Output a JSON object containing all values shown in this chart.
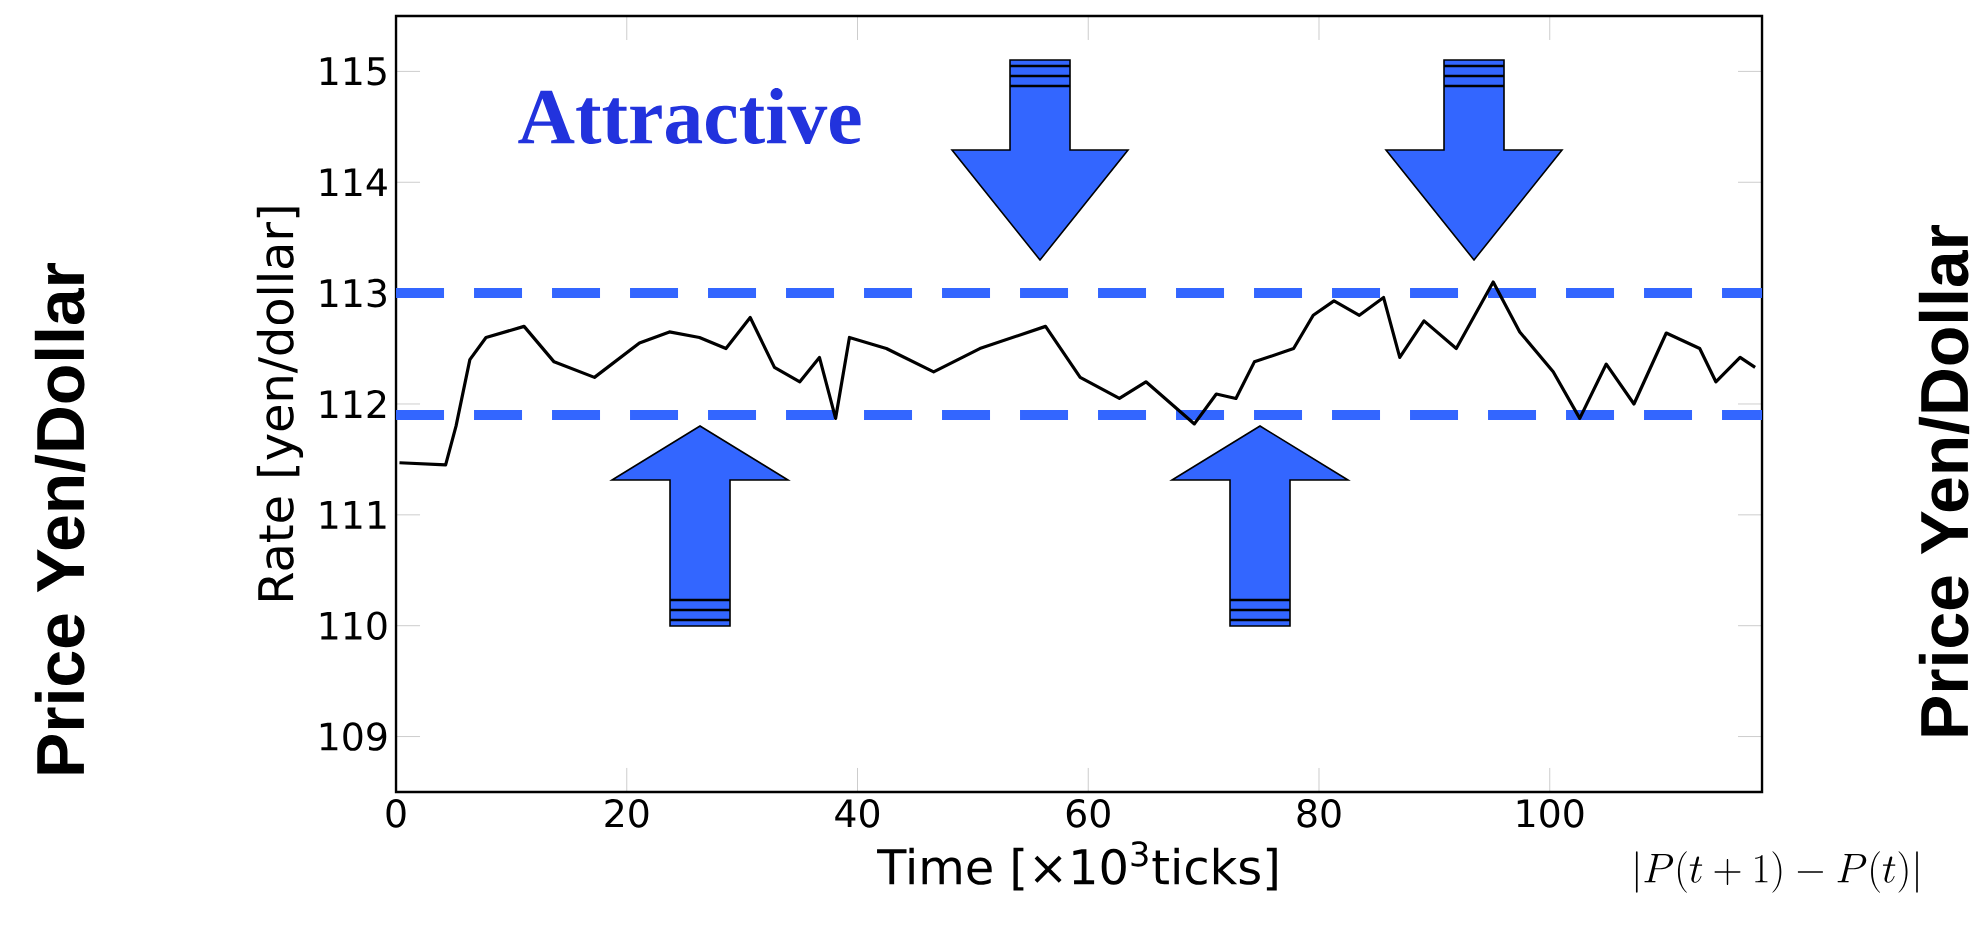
{
  "chart_data": {
    "type": "line",
    "xlabel": "Time [×10$^{3}$ticks]",
    "ylabel": "Rate [yen/dollar]",
    "xlim": [
      0,
      118.4
    ],
    "ylim": [
      108.5,
      115.5
    ],
    "xticks": [
      0,
      20,
      40,
      60,
      80,
      100
    ],
    "yticks": [
      109,
      110,
      111,
      112,
      113,
      114,
      115
    ],
    "series": [
      {
        "color": "#000000",
        "x": [
          0.3,
          4.3,
          5.2,
          6.4,
          7.8,
          11.1,
          13.7,
          17.2,
          21.1,
          23.7,
          26.3,
          28.6,
          30.7,
          32.8,
          35.0,
          36.7,
          38.1,
          39.3,
          42.5,
          46.6,
          50.6,
          56.3,
          59.3,
          62.7,
          65.0,
          69.2,
          71.1,
          72.8,
          74.4,
          77.8,
          79.5,
          81.3,
          83.5,
          85.6,
          87.0,
          89.1,
          91.9,
          95.1,
          97.4,
          100.3,
          102.6,
          104.9,
          107.3,
          110.1,
          113.0,
          114.4,
          116.5,
          117.8
        ],
        "values": [
          111.47,
          111.45,
          111.8,
          112.4,
          112.6,
          112.7,
          112.38,
          112.24,
          112.55,
          112.65,
          112.6,
          112.5,
          112.78,
          112.33,
          112.2,
          112.42,
          111.87,
          112.6,
          112.5,
          112.29,
          112.5,
          112.7,
          112.24,
          112.05,
          112.2,
          111.82,
          112.09,
          112.05,
          112.38,
          112.5,
          112.8,
          112.93,
          112.8,
          112.96,
          112.42,
          112.75,
          112.5,
          113.1,
          112.65,
          112.29,
          111.87,
          112.36,
          112.0,
          112.64,
          112.5,
          112.2,
          112.42,
          112.33
        ]
      }
    ],
    "ref_lines": [
      {
        "axis": "y",
        "value": 113,
        "color": "#3366ff",
        "line_style": "dashed"
      },
      {
        "axis": "y",
        "value": 111.9,
        "color": "#3366ff",
        "line_style": "dashed"
      }
    ],
    "annotations": [
      "Attractive",
      "Price Yen/Dollar",
      "Price Yen/Dollar",
      "|P(t+1)-P(t)|"
    ]
  }
}
